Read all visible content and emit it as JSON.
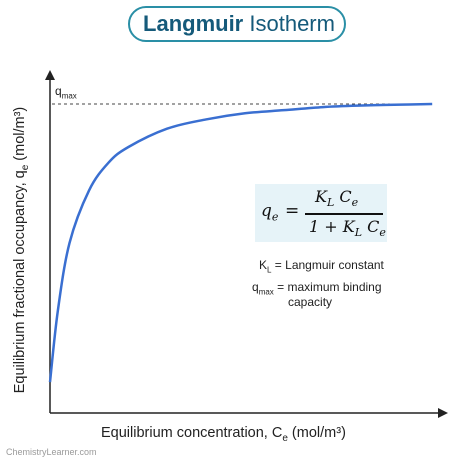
{
  "title": {
    "bold": "Langmuir",
    "normal": "Isotherm"
  },
  "colors": {
    "accent": "#2a8fa6",
    "title_text": "#155a7a",
    "curve": "#3a6fd1",
    "equation_bg": "#e6f3f8"
  },
  "chart_data": {
    "type": "line",
    "ylabel": "Equilibrium fractional occupancy, q",
    "ylabel_sub": "e",
    "ylabel_unit": " (mol/m³)",
    "xlabel": "Equilibrium concentration, C",
    "xlabel_sub": "e",
    "xlabel_unit": " (mol/m³)",
    "ref_line": {
      "label": "q",
      "label_sub": "max",
      "y": 1.0,
      "style": "dashed"
    },
    "x_range": [
      0,
      1
    ],
    "y_range": [
      0,
      1
    ],
    "grid": false,
    "series": [
      {
        "x": [
          0.0,
          0.02,
          0.05,
          0.1,
          0.15,
          0.2,
          0.3,
          0.4,
          0.5,
          0.6,
          0.7,
          0.8,
          0.9,
          0.98
        ],
        "y": [
          0.1,
          0.33,
          0.55,
          0.72,
          0.81,
          0.86,
          0.92,
          0.95,
          0.97,
          0.98,
          0.99,
          0.995,
          0.998,
          1.0
        ]
      }
    ]
  },
  "equation": {
    "lhs": "q",
    "lhs_sub": "e",
    "equals": "=",
    "num_a": "K",
    "num_a_sub": "L",
    "num_b": " C",
    "num_b_sub": "e",
    "den_a": "1 + K",
    "den_a_sub": "L",
    "den_b": " C",
    "den_b_sub": "e"
  },
  "legend": [
    {
      "symbol": "K",
      "symbol_sub": "L",
      "text": " = Langmuir constant"
    },
    {
      "symbol": "q",
      "symbol_sub": "max",
      "text": " = maximum binding"
    },
    {
      "text2": "capacity"
    }
  ],
  "footer": "ChemistryLearner.com"
}
